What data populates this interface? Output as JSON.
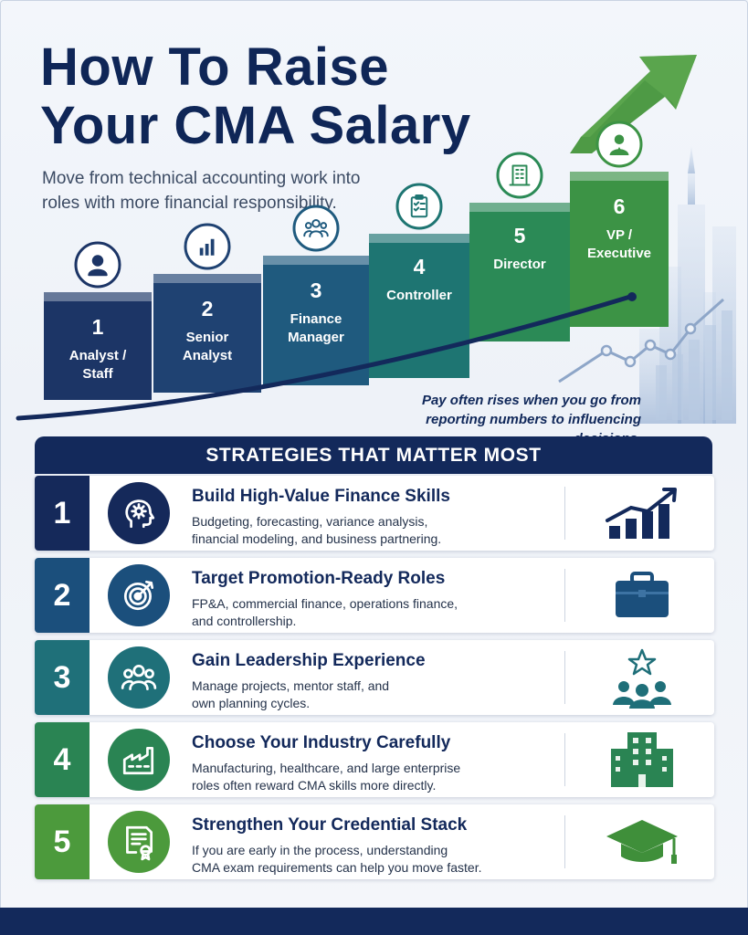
{
  "title": {
    "line1": "How To Raise",
    "line2": "Your CMA Salary"
  },
  "subtitle": "Move from technical accounting work into roles with more financial responsibility.",
  "career_steps": [
    {
      "number": "1",
      "label_line1": "Analyst /",
      "label_line2": "Staff",
      "color": "#1c3566",
      "icon": "person-icon"
    },
    {
      "number": "2",
      "label_line1": "Senior",
      "label_line2": "Analyst",
      "color": "#1f4272",
      "icon": "bar-chart-icon"
    },
    {
      "number": "3",
      "label_line1": "Finance",
      "label_line2": "Manager",
      "color": "#1f5a7e",
      "icon": "team-icon"
    },
    {
      "number": "4",
      "label_line1": "Controller",
      "label_line2": "",
      "color": "#1e7572",
      "icon": "checklist-icon"
    },
    {
      "number": "5",
      "label_line1": "Director",
      "label_line2": "",
      "color": "#2b8a56",
      "icon": "building-icon"
    },
    {
      "number": "6",
      "label_line1": "VP /",
      "label_line2": "Executive",
      "color": "#3c9345",
      "icon": "executive-icon"
    }
  ],
  "pay_note": "Pay often rises when you go from reporting numbers to influencing decisions.",
  "strategies_header": "STRATEGIES THAT MATTER MOST",
  "strategies": [
    {
      "number": "1",
      "title": "Build High-Value Finance Skills",
      "desc_line1": "Budgeting, forecasting, variance analysis,",
      "desc_line2": "financial modeling, and business partnering.",
      "color": "#15295a",
      "icon": "head-gear-icon",
      "picture": "rising-bar-chart-icon"
    },
    {
      "number": "2",
      "title": "Target Promotion-Ready Roles",
      "desc_line1": "FP&A, commercial finance, operations finance,",
      "desc_line2": "and controllership.",
      "color": "#1b4f7c",
      "icon": "target-icon",
      "picture": "briefcase-icon"
    },
    {
      "number": "3",
      "title": "Gain Leadership Experience",
      "desc_line1": "Manage projects, mentor staff, and",
      "desc_line2": "own planning cycles.",
      "color": "#1f7079",
      "icon": "team-icon",
      "picture": "team-star-icon"
    },
    {
      "number": "4",
      "title": "Choose Your Industry Carefully",
      "desc_line1": "Manufacturing, healthcare, and large enterprise",
      "desc_line2": "roles often reward CMA skills more directly.",
      "color": "#2a8453",
      "icon": "factory-icon",
      "picture": "office-building-icon"
    },
    {
      "number": "5",
      "title": "Strengthen Your Credential Stack",
      "desc_line1": "If you are early in the process, understanding",
      "desc_line2": "CMA exam requirements can help you move faster.",
      "color": "#4c9a3c",
      "icon": "certificate-icon",
      "picture": "graduation-cap-icon"
    }
  ]
}
